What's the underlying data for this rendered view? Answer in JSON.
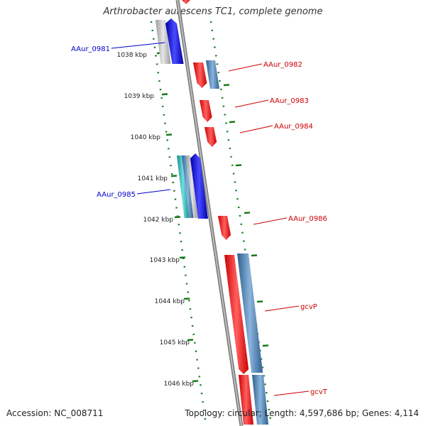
{
  "title": "Arthrobacter aurescens TC1, complete genome",
  "footer": {
    "accession": "Accession: NC_008711",
    "summary": "Topology: circular; Length: 4,597,686 bp; Genes: 4,114"
  },
  "colors": {
    "forward": "#ff0000",
    "reverse": "#0000ff",
    "forward_label": "#cc0000",
    "reverse_label": "#0000cc",
    "backbone": "#808080",
    "tick": "#1a7a1a",
    "steelblue": "#4682b4",
    "cyan": "#20b2aa",
    "gray": "#b0b0b0"
  },
  "kbp_labels": [
    "1038 kbp",
    "1039 kbp",
    "1040 kbp",
    "1041 kbp",
    "1042 kbp",
    "1043 kbp",
    "1044 kbp",
    "1045 kbp",
    "1046 kbp"
  ],
  "genes": [
    {
      "label": "AAur_0981",
      "strand": "reverse"
    },
    {
      "label": "AAur_0982",
      "strand": "forward"
    },
    {
      "label": "AAur_0983",
      "strand": "forward"
    },
    {
      "label": "AAur_0984",
      "strand": "forward"
    },
    {
      "label": "AAur_0985",
      "strand": "reverse"
    },
    {
      "label": "AAur_0986",
      "strand": "forward"
    },
    {
      "label": "gcvP",
      "strand": "forward"
    },
    {
      "label": "gcvT",
      "strand": "forward"
    }
  ]
}
